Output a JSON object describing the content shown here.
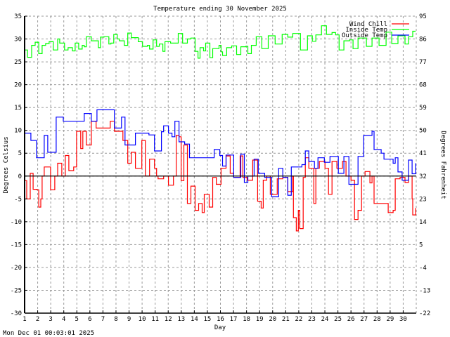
{
  "chart_data": {
    "type": "line",
    "title": "Temperature ending 30 November 2025",
    "xlabel": "Day",
    "ylabel": "Degrees Celsius",
    "ylabel_right": "Degrees Fahrenheit",
    "timestamp": "Mon Dec 01 00:03:01 2025",
    "xlim": [
      1,
      31
    ],
    "ylim": [
      -30,
      35
    ],
    "x_ticks": [
      1,
      2,
      3,
      4,
      5,
      6,
      7,
      8,
      9,
      10,
      11,
      12,
      13,
      14,
      15,
      16,
      17,
      18,
      19,
      20,
      21,
      22,
      23,
      24,
      25,
      26,
      27,
      28,
      29,
      30
    ],
    "y_ticks": [
      35,
      30,
      25,
      20,
      15,
      10,
      5,
      0,
      -5,
      -10,
      -15,
      -20,
      -25,
      -30
    ],
    "y_ticks_right": [
      95,
      86,
      77,
      68,
      59,
      50,
      41,
      32,
      23,
      14,
      5,
      -4,
      -13,
      -22
    ],
    "grid": true,
    "legend_position": "top-right",
    "series": [
      {
        "name": "Wind Chill",
        "color": "#ff0000",
        "points": [
          [
            1,
            -1
          ],
          [
            1.16,
            -5
          ],
          [
            1.43,
            0.6
          ],
          [
            1.65,
            -2.9
          ],
          [
            1.91,
            -3
          ],
          [
            2.08,
            -6.8
          ],
          [
            2.24,
            -5
          ],
          [
            2.34,
            0
          ],
          [
            2.5,
            2
          ],
          [
            2.99,
            -3
          ],
          [
            3.31,
            0
          ],
          [
            3.53,
            2.8
          ],
          [
            3.85,
            0
          ],
          [
            4.12,
            4.5
          ],
          [
            4.39,
            1.2
          ],
          [
            4.76,
            2
          ],
          [
            4.98,
            9.8
          ],
          [
            5.3,
            6
          ],
          [
            5.46,
            9.8
          ],
          [
            5.73,
            6.8
          ],
          [
            6.11,
            12
          ],
          [
            6.48,
            10.5
          ],
          [
            7.56,
            12
          ],
          [
            7.88,
            9.8
          ],
          [
            8.53,
            7.8
          ],
          [
            8.9,
            2.8
          ],
          [
            9.17,
            5.2
          ],
          [
            9.49,
            1.7
          ],
          [
            9.98,
            7.8
          ],
          [
            10.25,
            0
          ],
          [
            10.57,
            3.7
          ],
          [
            10.95,
            1.7
          ],
          [
            11.11,
            0
          ],
          [
            11.22,
            -0.6
          ],
          [
            11.65,
            0
          ],
          [
            12.02,
            -2
          ],
          [
            12.4,
            0
          ],
          [
            12.61,
            8.9
          ],
          [
            12.83,
            8.6
          ],
          [
            12.99,
            -1
          ],
          [
            13.2,
            6.8
          ],
          [
            13.47,
            -6
          ],
          [
            13.74,
            -2.2
          ],
          [
            14.06,
            -7.5
          ],
          [
            14.33,
            -6
          ],
          [
            14.6,
            -8
          ],
          [
            14.76,
            -4
          ],
          [
            15.14,
            -6.8
          ],
          [
            15.41,
            -0.3
          ],
          [
            15.68,
            -1.8
          ],
          [
            16.05,
            1.7
          ],
          [
            16.43,
            4.4
          ],
          [
            16.75,
            0.6
          ],
          [
            17.02,
            -0.3
          ],
          [
            17.51,
            4.4
          ],
          [
            17.72,
            -0.3
          ],
          [
            18.04,
            -0.9
          ],
          [
            18.47,
            3.5
          ],
          [
            18.85,
            -5.5
          ],
          [
            19.12,
            -7
          ],
          [
            19.28,
            -0.9
          ],
          [
            19.55,
            0
          ],
          [
            19.82,
            -4
          ],
          [
            20.09,
            -4
          ],
          [
            20.35,
            -0.6
          ],
          [
            20.78,
            -0.3
          ],
          [
            21.16,
            -3.4
          ],
          [
            21.54,
            0
          ],
          [
            21.59,
            -9.1
          ],
          [
            21.81,
            -12
          ],
          [
            21.97,
            -7.5
          ],
          [
            22.08,
            -11.5
          ],
          [
            22.34,
            -0.3
          ],
          [
            22.5,
            4
          ],
          [
            22.77,
            1.7
          ],
          [
            23.15,
            -6
          ],
          [
            23.31,
            1.7
          ],
          [
            23.58,
            3.2
          ],
          [
            24.01,
            1.7
          ],
          [
            24.28,
            -4
          ],
          [
            24.55,
            3.2
          ],
          [
            24.92,
            1.7
          ],
          [
            25.35,
            3.2
          ],
          [
            25.62,
            0
          ],
          [
            26,
            -0.9
          ],
          [
            26.27,
            -9.5
          ],
          [
            26.54,
            -7.5
          ],
          [
            26.81,
            0
          ],
          [
            27.08,
            1
          ],
          [
            27.45,
            -1.5
          ],
          [
            27.61,
            0
          ],
          [
            27.77,
            -6
          ],
          [
            28.53,
            -6
          ],
          [
            28.85,
            -8
          ],
          [
            29.23,
            -7.5
          ],
          [
            29.39,
            -0.6
          ],
          [
            29.76,
            -0.3
          ],
          [
            30.14,
            -1.4
          ],
          [
            30.41,
            0
          ],
          [
            30.68,
            -5
          ],
          [
            30.73,
            -8.5
          ],
          [
            30.95,
            -7
          ]
        ]
      },
      {
        "name": "Inside Temp",
        "color": "#00ff00",
        "points": [
          [
            1.05,
            27.6
          ],
          [
            1.22,
            26
          ],
          [
            1.54,
            28.6
          ],
          [
            1.81,
            29.3
          ],
          [
            2.08,
            26.8
          ],
          [
            2.34,
            28.6
          ],
          [
            2.61,
            29
          ],
          [
            2.88,
            29.4
          ],
          [
            3.2,
            27.6
          ],
          [
            3.53,
            30
          ],
          [
            3.69,
            29.1
          ],
          [
            4.06,
            27.6
          ],
          [
            4.33,
            28.1
          ],
          [
            4.66,
            27.4
          ],
          [
            4.87,
            29.1
          ],
          [
            5.14,
            27.8
          ],
          [
            5.41,
            28.6
          ],
          [
            5.57,
            28.3
          ],
          [
            5.73,
            30.5
          ],
          [
            6.11,
            29.6
          ],
          [
            6.65,
            28.1
          ],
          [
            6.81,
            30.4
          ],
          [
            7.08,
            30.5
          ],
          [
            7.45,
            28.9
          ],
          [
            7.61,
            29.1
          ],
          [
            7.83,
            31
          ],
          [
            8.1,
            30
          ],
          [
            8.26,
            29.6
          ],
          [
            8.63,
            28.6
          ],
          [
            8.9,
            31.3
          ],
          [
            9.17,
            30.3
          ],
          [
            9.49,
            30.3
          ],
          [
            9.71,
            29.4
          ],
          [
            10.03,
            28.4
          ],
          [
            10.41,
            28.6
          ],
          [
            10.57,
            27.8
          ],
          [
            10.84,
            29.8
          ],
          [
            11.11,
            28.4
          ],
          [
            11.32,
            28.9
          ],
          [
            11.59,
            27.3
          ],
          [
            11.75,
            29.4
          ],
          [
            12.18,
            29.1
          ],
          [
            12.45,
            29.1
          ],
          [
            12.77,
            31.2
          ],
          [
            13.1,
            29.1
          ],
          [
            13.47,
            30
          ],
          [
            13.74,
            30.2
          ],
          [
            14.06,
            27.3
          ],
          [
            14.28,
            25.8
          ],
          [
            14.44,
            28.1
          ],
          [
            14.71,
            27.4
          ],
          [
            14.87,
            29.1
          ],
          [
            15.19,
            25.9
          ],
          [
            15.41,
            27.9
          ],
          [
            15.89,
            28.6
          ],
          [
            16.05,
            27.2
          ],
          [
            16.16,
            26.4
          ],
          [
            16.48,
            28.1
          ],
          [
            16.86,
            28.5
          ],
          [
            17.24,
            26.6
          ],
          [
            17.56,
            28.3
          ],
          [
            17.94,
            28.4
          ],
          [
            18.1,
            26.8
          ],
          [
            18.37,
            28.6
          ],
          [
            18.74,
            30.5
          ],
          [
            19.17,
            27.9
          ],
          [
            19.66,
            30.7
          ],
          [
            20.19,
            28.9
          ],
          [
            20.73,
            31
          ],
          [
            21.16,
            30.4
          ],
          [
            21.54,
            31.2
          ],
          [
            22.13,
            27.6
          ],
          [
            22.67,
            30.7
          ],
          [
            23.04,
            29.5
          ],
          [
            23.31,
            30.9
          ],
          [
            23.74,
            32.9
          ],
          [
            24.12,
            31
          ],
          [
            24.55,
            31.4
          ],
          [
            24.82,
            30.9
          ],
          [
            25.09,
            27.6
          ],
          [
            25.46,
            29.6
          ],
          [
            25.89,
            29.8
          ],
          [
            26.16,
            27.9
          ],
          [
            26.54,
            30.2
          ],
          [
            27.18,
            28.4
          ],
          [
            27.61,
            30.2
          ],
          [
            28.15,
            28.6
          ],
          [
            28.69,
            31.5
          ],
          [
            29.12,
            29
          ],
          [
            29.6,
            30.7
          ],
          [
            30.14,
            28.9
          ],
          [
            30.41,
            30.5
          ],
          [
            30.73,
            31.7
          ],
          [
            30.95,
            31.7
          ]
        ]
      },
      {
        "name": "Outside Temp",
        "color": "#0000ff",
        "points": [
          [
            1,
            9.4
          ],
          [
            1.48,
            7.8
          ],
          [
            1.91,
            4
          ],
          [
            2.24,
            4
          ],
          [
            2.5,
            8.9
          ],
          [
            2.77,
            5.2
          ],
          [
            3.42,
            12.9
          ],
          [
            3.96,
            12
          ],
          [
            5.03,
            12
          ],
          [
            5.57,
            13.7
          ],
          [
            6.11,
            12
          ],
          [
            6.54,
            14.5
          ],
          [
            7.56,
            14.5
          ],
          [
            7.88,
            10.5
          ],
          [
            8.42,
            12.9
          ],
          [
            8.69,
            6.8
          ],
          [
            9.49,
            9.4
          ],
          [
            10.03,
            9.4
          ],
          [
            10.52,
            9
          ],
          [
            10.95,
            5.5
          ],
          [
            11.48,
            9.7
          ],
          [
            11.65,
            11
          ],
          [
            12.02,
            9.4
          ],
          [
            12.29,
            8.6
          ],
          [
            12.51,
            12
          ],
          [
            12.83,
            7.5
          ],
          [
            13.26,
            7
          ],
          [
            13.63,
            4
          ],
          [
            14.55,
            4
          ],
          [
            15.25,
            4
          ],
          [
            15.52,
            5.8
          ],
          [
            15.95,
            4.5
          ],
          [
            16.16,
            2.2
          ],
          [
            16.43,
            4.6
          ],
          [
            17.02,
            -0.3
          ],
          [
            17.56,
            4.8
          ],
          [
            17.83,
            -1.4
          ],
          [
            18.1,
            0
          ],
          [
            18.58,
            3.7
          ],
          [
            18.9,
            0.6
          ],
          [
            19.39,
            -0.3
          ],
          [
            19.92,
            -4.5
          ],
          [
            20.46,
            1.7
          ],
          [
            20.78,
            -0.3
          ],
          [
            21.16,
            -4.2
          ],
          [
            21.43,
            2
          ],
          [
            22.24,
            2.5
          ],
          [
            22.5,
            5.5
          ],
          [
            22.77,
            3.2
          ],
          [
            23.2,
            1.7
          ],
          [
            23.47,
            4
          ],
          [
            23.96,
            3
          ],
          [
            24.39,
            4.3
          ],
          [
            25.03,
            0.6
          ],
          [
            25.46,
            4.3
          ],
          [
            25.84,
            -1.8
          ],
          [
            26.54,
            4.3
          ],
          [
            26.97,
            8.9
          ],
          [
            27.61,
            9.8
          ],
          [
            27.77,
            5.8
          ],
          [
            28.31,
            5
          ],
          [
            28.53,
            3.7
          ],
          [
            29.23,
            2.8
          ],
          [
            29.39,
            4
          ],
          [
            29.6,
            0.9
          ],
          [
            29.92,
            -0.9
          ],
          [
            30.41,
            3.5
          ],
          [
            30.68,
            0.5
          ],
          [
            30.95,
            2.8
          ]
        ]
      }
    ]
  }
}
